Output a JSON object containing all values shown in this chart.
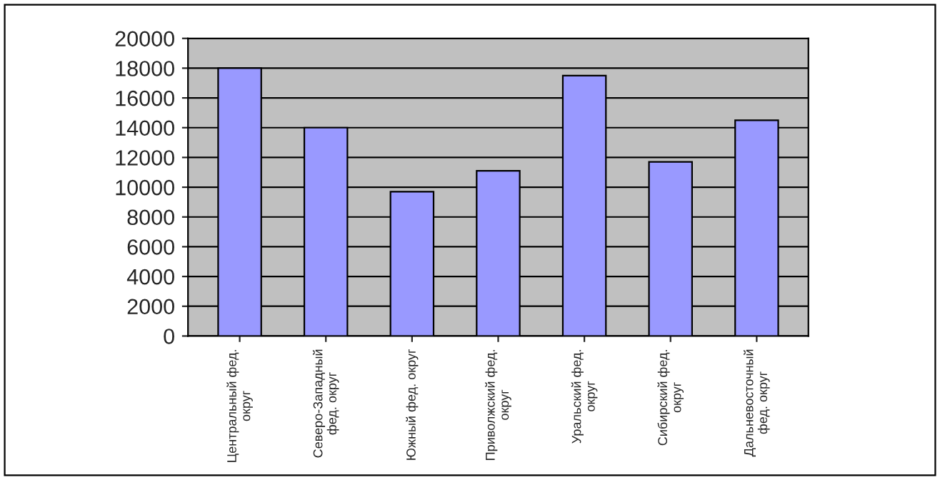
{
  "chart_data": {
    "type": "bar",
    "categories": [
      "Центральный фед.\nокруг",
      "Северо-Западный\nфед. округ",
      "Южный фед. округ",
      "Приволжский фед.\nокруг",
      "Уральский фед.\nокруг",
      "Сибирский фед.\nокруг",
      "Дальневосточный\nфед. округ"
    ],
    "values": [
      18000,
      14000,
      9700,
      11100,
      17500,
      11700,
      14500
    ],
    "color": "#9999ff",
    "ylim": [
      0,
      20000
    ],
    "yticks": [
      0,
      2000,
      4000,
      6000,
      8000,
      10000,
      12000,
      14000,
      16000,
      18000,
      20000
    ],
    "grid": "y"
  }
}
